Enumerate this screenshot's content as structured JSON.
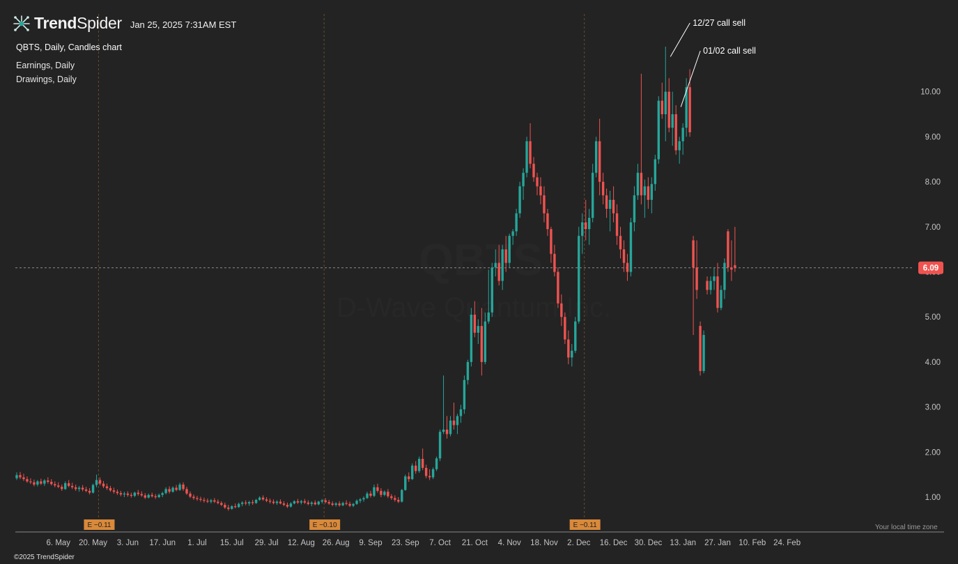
{
  "header": {
    "brand_bold": "Trend",
    "brand_light": "Spider",
    "timestamp": "Jan 25, 2025 7:31AM EST"
  },
  "chart_title": "QBTS, Daily, Candles chart",
  "indicators": [
    "Earnings, Daily",
    "Drawings, Daily"
  ],
  "watermark": {
    "symbol": "QBTS",
    "name": "D-Wave Quantum Inc."
  },
  "local_time_zone": "Your local time zone",
  "copyright": "©2025 TrendSpider",
  "colors": {
    "up": "#26a69a",
    "down": "#ef5350",
    "background": "#232323",
    "earnings": "#d9893a",
    "last_price": "#ef5350"
  },
  "chart_data": {
    "type": "candlestick",
    "symbol": "QBTS",
    "interval": "Daily",
    "ylim": [
      0.3,
      11.3
    ],
    "y_ticks": [
      "1.00",
      "2.00",
      "3.00",
      "4.00",
      "5.00",
      "6.00",
      "7.00",
      "8.00",
      "9.00",
      "10.00"
    ],
    "x_ticks": [
      "6. May",
      "20. May",
      "3. Jun",
      "17. Jun",
      "1. Jul",
      "15. Jul",
      "29. Jul",
      "12. Aug",
      "26. Aug",
      "9. Sep",
      "23. Sep",
      "7. Oct",
      "21. Oct",
      "4. Nov",
      "18. Nov",
      "2. Dec",
      "16. Dec",
      "30. Dec",
      "13. Jan",
      "27. Jan",
      "10. Feb",
      "24. Feb"
    ],
    "last_price": 6.09,
    "last_price_label": "6.09",
    "earnings": [
      {
        "label": "E −0.11",
        "bar": 27
      },
      {
        "label": "E −0.10",
        "bar": 92
      },
      {
        "label": "E −0.11",
        "bar": 167
      }
    ],
    "annotations": [
      {
        "text": "12/27 call sell",
        "bar": 188,
        "price": 10.5
      },
      {
        "text": "01/02 call sell",
        "bar": 191,
        "price": 9.6
      }
    ],
    "ohlc": [
      [
        1.42,
        1.55,
        1.38,
        1.49
      ],
      [
        1.49,
        1.56,
        1.4,
        1.44
      ],
      [
        1.44,
        1.52,
        1.36,
        1.4
      ],
      [
        1.4,
        1.46,
        1.32,
        1.35
      ],
      [
        1.35,
        1.42,
        1.29,
        1.33
      ],
      [
        1.33,
        1.39,
        1.24,
        1.28
      ],
      [
        1.28,
        1.38,
        1.24,
        1.35
      ],
      [
        1.35,
        1.41,
        1.27,
        1.3
      ],
      [
        1.3,
        1.4,
        1.25,
        1.37
      ],
      [
        1.37,
        1.44,
        1.3,
        1.34
      ],
      [
        1.34,
        1.4,
        1.26,
        1.29
      ],
      [
        1.29,
        1.35,
        1.22,
        1.26
      ],
      [
        1.26,
        1.33,
        1.2,
        1.23
      ],
      [
        1.23,
        1.28,
        1.14,
        1.18
      ],
      [
        1.18,
        1.35,
        1.16,
        1.31
      ],
      [
        1.31,
        1.38,
        1.22,
        1.25
      ],
      [
        1.25,
        1.32,
        1.18,
        1.22
      ],
      [
        1.22,
        1.28,
        1.14,
        1.18
      ],
      [
        1.18,
        1.25,
        1.12,
        1.21
      ],
      [
        1.21,
        1.27,
        1.13,
        1.17
      ],
      [
        1.17,
        1.23,
        1.11,
        1.14
      ],
      [
        1.14,
        1.2,
        1.06,
        1.1
      ],
      [
        1.1,
        1.3,
        1.08,
        1.27
      ],
      [
        1.27,
        1.5,
        1.22,
        1.38
      ],
      [
        1.38,
        1.44,
        1.26,
        1.3
      ],
      [
        1.3,
        1.36,
        1.2,
        1.24
      ],
      [
        1.24,
        1.3,
        1.16,
        1.2
      ],
      [
        1.2,
        1.25,
        1.12,
        1.15
      ],
      [
        1.15,
        1.21,
        1.08,
        1.12
      ],
      [
        1.12,
        1.17,
        1.05,
        1.09
      ],
      [
        1.09,
        1.14,
        1.02,
        1.06
      ],
      [
        1.06,
        1.12,
        1.0,
        1.08
      ],
      [
        1.08,
        1.13,
        1.01,
        1.05
      ],
      [
        1.05,
        1.1,
        0.99,
        1.03
      ],
      [
        1.03,
        1.12,
        1.0,
        1.1
      ],
      [
        1.1,
        1.16,
        1.03,
        1.07
      ],
      [
        1.07,
        1.13,
        1.01,
        1.04
      ],
      [
        1.04,
        1.09,
        0.96,
        0.99
      ],
      [
        0.99,
        1.08,
        0.97,
        1.05
      ],
      [
        1.05,
        1.1,
        0.99,
        1.02
      ],
      [
        1.02,
        1.07,
        0.96,
        1.0
      ],
      [
        1.0,
        1.08,
        0.98,
        1.05
      ],
      [
        1.05,
        1.12,
        1.0,
        1.09
      ],
      [
        1.09,
        1.22,
        1.06,
        1.18
      ],
      [
        1.18,
        1.24,
        1.08,
        1.12
      ],
      [
        1.12,
        1.24,
        1.1,
        1.21
      ],
      [
        1.21,
        1.27,
        1.13,
        1.16
      ],
      [
        1.16,
        1.32,
        1.14,
        1.28
      ],
      [
        1.28,
        1.33,
        1.14,
        1.18
      ],
      [
        1.18,
        1.23,
        1.05,
        1.08
      ],
      [
        1.08,
        1.13,
        0.98,
        1.01
      ],
      [
        1.01,
        1.06,
        0.94,
        0.98
      ],
      [
        0.98,
        1.03,
        0.92,
        0.96
      ],
      [
        0.96,
        1.01,
        0.9,
        0.94
      ],
      [
        0.94,
        0.99,
        0.88,
        0.92
      ],
      [
        0.92,
        0.97,
        0.87,
        0.9
      ],
      [
        0.9,
        0.96,
        0.86,
        0.93
      ],
      [
        0.93,
        0.98,
        0.87,
        0.9
      ],
      [
        0.9,
        0.95,
        0.84,
        0.87
      ],
      [
        0.87,
        0.91,
        0.8,
        0.83
      ],
      [
        0.83,
        0.88,
        0.74,
        0.77
      ],
      [
        0.77,
        0.83,
        0.7,
        0.74
      ],
      [
        0.74,
        0.82,
        0.72,
        0.8
      ],
      [
        0.8,
        0.86,
        0.75,
        0.78
      ],
      [
        0.78,
        0.88,
        0.76,
        0.85
      ],
      [
        0.85,
        0.91,
        0.8,
        0.88
      ],
      [
        0.88,
        0.93,
        0.82,
        0.86
      ],
      [
        0.86,
        0.92,
        0.81,
        0.89
      ],
      [
        0.89,
        0.94,
        0.83,
        0.87
      ],
      [
        0.87,
        0.96,
        0.85,
        0.94
      ],
      [
        0.94,
        1.02,
        0.92,
        0.99
      ],
      [
        0.99,
        1.04,
        0.92,
        0.95
      ],
      [
        0.95,
        1.0,
        0.89,
        0.92
      ],
      [
        0.92,
        0.97,
        0.86,
        0.9
      ],
      [
        0.9,
        0.95,
        0.84,
        0.87
      ],
      [
        0.87,
        0.93,
        0.83,
        0.9
      ],
      [
        0.9,
        0.95,
        0.84,
        0.86
      ],
      [
        0.86,
        0.91,
        0.8,
        0.83
      ],
      [
        0.83,
        0.88,
        0.76,
        0.79
      ],
      [
        0.79,
        0.89,
        0.77,
        0.86
      ],
      [
        0.86,
        0.93,
        0.84,
        0.91
      ],
      [
        0.91,
        0.96,
        0.85,
        0.88
      ],
      [
        0.88,
        0.94,
        0.84,
        0.91
      ],
      [
        0.91,
        0.96,
        0.85,
        0.88
      ],
      [
        0.88,
        0.93,
        0.82,
        0.85
      ],
      [
        0.85,
        0.91,
        0.8,
        0.88
      ],
      [
        0.88,
        0.93,
        0.82,
        0.84
      ],
      [
        0.84,
        0.92,
        0.82,
        0.9
      ],
      [
        0.9,
        0.96,
        0.86,
        0.93
      ],
      [
        0.93,
        0.98,
        0.86,
        0.89
      ],
      [
        0.89,
        0.94,
        0.83,
        0.86
      ],
      [
        0.86,
        0.91,
        0.8,
        0.83
      ],
      [
        0.83,
        0.89,
        0.79,
        0.86
      ],
      [
        0.86,
        0.91,
        0.79,
        0.82
      ],
      [
        0.82,
        0.9,
        0.8,
        0.87
      ],
      [
        0.87,
        0.93,
        0.82,
        0.85
      ],
      [
        0.85,
        0.9,
        0.78,
        0.81
      ],
      [
        0.81,
        0.87,
        0.78,
        0.85
      ],
      [
        0.85,
        0.95,
        0.83,
        0.92
      ],
      [
        0.92,
        0.98,
        0.87,
        0.95
      ],
      [
        0.95,
        1.02,
        0.9,
        0.98
      ],
      [
        0.98,
        1.12,
        0.96,
        1.08
      ],
      [
        1.08,
        1.14,
        0.99,
        1.03
      ],
      [
        1.03,
        1.28,
        1.0,
        1.22
      ],
      [
        1.22,
        1.3,
        1.1,
        1.14
      ],
      [
        1.14,
        1.2,
        1.0,
        1.05
      ],
      [
        1.05,
        1.15,
        1.02,
        1.12
      ],
      [
        1.12,
        1.18,
        0.98,
        1.02
      ],
      [
        1.02,
        1.07,
        0.94,
        0.98
      ],
      [
        0.98,
        1.04,
        0.9,
        0.94
      ],
      [
        0.94,
        1.0,
        0.87,
        0.9
      ],
      [
        0.9,
        1.18,
        0.88,
        1.16
      ],
      [
        1.16,
        1.5,
        1.14,
        1.46
      ],
      [
        1.46,
        1.55,
        1.34,
        1.4
      ],
      [
        1.4,
        1.75,
        1.38,
        1.7
      ],
      [
        1.7,
        1.8,
        1.52,
        1.58
      ],
      [
        1.58,
        1.9,
        1.54,
        1.85
      ],
      [
        1.85,
        2.08,
        1.6,
        1.65
      ],
      [
        1.65,
        1.72,
        1.42,
        1.47
      ],
      [
        1.47,
        1.62,
        1.38,
        1.44
      ],
      [
        1.44,
        1.66,
        1.4,
        1.62
      ],
      [
        1.62,
        1.9,
        1.58,
        1.86
      ],
      [
        1.86,
        2.5,
        1.8,
        2.45
      ],
      [
        2.45,
        3.7,
        2.4,
        2.5
      ],
      [
        2.5,
        2.8,
        2.3,
        2.4
      ],
      [
        2.4,
        2.8,
        2.35,
        2.7
      ],
      [
        2.7,
        3.1,
        2.5,
        2.6
      ],
      [
        2.6,
        2.85,
        2.4,
        2.8
      ],
      [
        2.8,
        3.05,
        2.65,
        2.95
      ],
      [
        2.95,
        3.7,
        2.85,
        3.6
      ],
      [
        3.6,
        4.05,
        3.5,
        4.0
      ],
      [
        4.0,
        5.2,
        3.9,
        5.05
      ],
      [
        5.05,
        5.35,
        4.55,
        4.65
      ],
      [
        4.65,
        4.95,
        4.4,
        4.8
      ],
      [
        4.8,
        5.2,
        3.7,
        4.0
      ],
      [
        4.0,
        5.1,
        3.95,
        4.9
      ],
      [
        4.9,
        6.05,
        4.85,
        5.1
      ],
      [
        5.1,
        6.2,
        5.0,
        6.1
      ],
      [
        6.1,
        6.5,
        5.9,
        6.2
      ],
      [
        6.2,
        6.6,
        5.7,
        5.8
      ],
      [
        5.8,
        6.6,
        5.6,
        6.5
      ],
      [
        6.5,
        6.8,
        6.0,
        6.2
      ],
      [
        6.2,
        6.85,
        6.1,
        6.8
      ],
      [
        6.8,
        6.95,
        6.6,
        6.9
      ],
      [
        6.9,
        7.4,
        6.8,
        7.3
      ],
      [
        7.3,
        8.0,
        7.2,
        7.9
      ],
      [
        7.9,
        8.3,
        7.6,
        8.2
      ],
      [
        8.2,
        9.0,
        8.1,
        8.9
      ],
      [
        8.9,
        9.3,
        8.3,
        8.4
      ],
      [
        8.4,
        8.55,
        8.0,
        8.1
      ],
      [
        8.1,
        8.2,
        7.7,
        7.9
      ],
      [
        7.9,
        8.1,
        7.5,
        7.7
      ],
      [
        7.7,
        7.9,
        7.1,
        7.3
      ],
      [
        7.3,
        7.4,
        6.8,
        6.95
      ],
      [
        6.95,
        7.0,
        6.2,
        6.4
      ],
      [
        6.4,
        6.6,
        5.9,
        6.0
      ],
      [
        6.0,
        6.1,
        5.2,
        5.3
      ],
      [
        5.3,
        5.5,
        4.8,
        5.0
      ],
      [
        5.0,
        5.1,
        4.4,
        4.5
      ],
      [
        4.5,
        4.7,
        3.95,
        4.1
      ],
      [
        4.1,
        4.4,
        3.9,
        4.25
      ],
      [
        4.25,
        5.0,
        4.2,
        4.9
      ],
      [
        4.9,
        7.0,
        4.85,
        6.8
      ],
      [
        6.8,
        7.3,
        6.4,
        7.1
      ],
      [
        7.1,
        7.6,
        6.7,
        6.95
      ],
      [
        6.95,
        7.4,
        6.6,
        7.2
      ],
      [
        7.2,
        8.4,
        7.1,
        8.2
      ],
      [
        8.2,
        9.0,
        8.1,
        8.9
      ],
      [
        8.9,
        9.4,
        7.7,
        8.0
      ],
      [
        8.0,
        8.2,
        7.5,
        7.7
      ],
      [
        7.7,
        7.85,
        7.2,
        7.4
      ],
      [
        7.4,
        7.8,
        6.9,
        7.6
      ],
      [
        7.6,
        7.9,
        7.1,
        7.3
      ],
      [
        7.3,
        7.5,
        6.6,
        6.8
      ],
      [
        6.8,
        7.0,
        6.3,
        6.5
      ],
      [
        6.5,
        6.7,
        6.0,
        6.2
      ],
      [
        6.2,
        6.4,
        5.8,
        6.0
      ],
      [
        6.0,
        7.2,
        5.9,
        7.1
      ],
      [
        7.1,
        7.9,
        6.9,
        7.7
      ],
      [
        7.7,
        8.4,
        7.6,
        8.2
      ],
      [
        8.2,
        10.4,
        7.5,
        7.7
      ],
      [
        7.7,
        8.05,
        7.2,
        7.9
      ],
      [
        7.9,
        8.1,
        7.4,
        7.6
      ],
      [
        7.6,
        8.1,
        7.3,
        7.95
      ],
      [
        7.95,
        8.6,
        7.8,
        8.5
      ],
      [
        8.5,
        9.9,
        8.4,
        9.8
      ],
      [
        9.8,
        10.2,
        9.4,
        9.5
      ],
      [
        9.5,
        11.0,
        8.9,
        10.0
      ],
      [
        10.0,
        10.3,
        9.1,
        9.2
      ],
      [
        9.2,
        10.0,
        8.8,
        9.5
      ],
      [
        9.5,
        9.7,
        8.6,
        8.7
      ],
      [
        8.7,
        9.0,
        8.4,
        8.9
      ],
      [
        8.9,
        9.3,
        8.6,
        9.2
      ],
      [
        9.2,
        10.3,
        9.0,
        10.1
      ],
      [
        10.1,
        10.5,
        9.0,
        9.1
      ],
      [
        6.7,
        6.8,
        4.6,
        6.1
      ],
      [
        6.1,
        6.7,
        5.4,
        5.6
      ],
      [
        4.8,
        4.9,
        3.7,
        3.8
      ],
      [
        3.8,
        4.7,
        3.75,
        4.6
      ],
      [
        5.8,
        5.9,
        5.5,
        5.6
      ],
      [
        5.6,
        5.9,
        5.5,
        5.8
      ],
      [
        5.8,
        6.1,
        5.6,
        5.9
      ],
      [
        5.9,
        6.2,
        5.1,
        5.2
      ],
      [
        5.2,
        5.7,
        5.15,
        5.6
      ],
      [
        5.6,
        6.3,
        5.4,
        6.2
      ],
      [
        6.9,
        6.95,
        6.0,
        6.1
      ],
      [
        6.1,
        6.7,
        5.8,
        6.05
      ],
      [
        6.15,
        7.0,
        6.0,
        6.09
      ]
    ]
  }
}
